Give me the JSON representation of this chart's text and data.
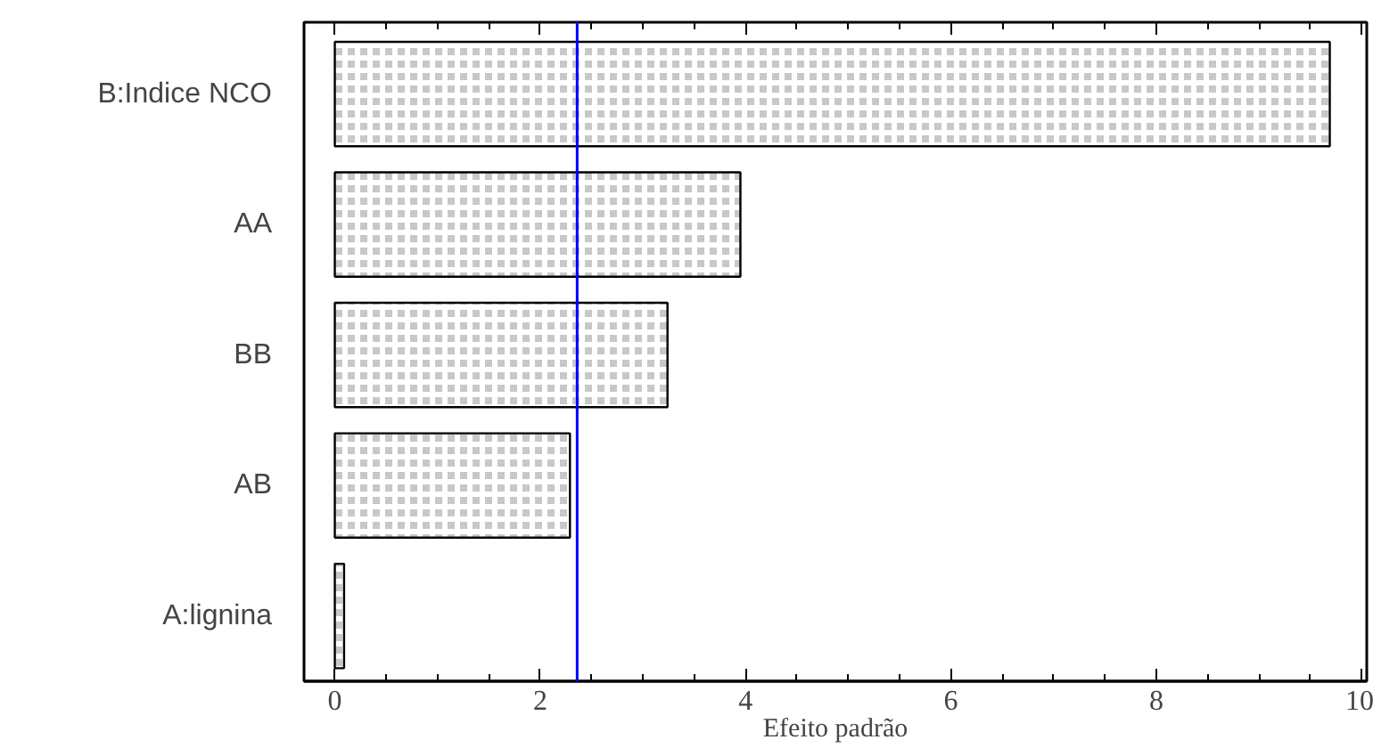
{
  "chart_data": {
    "type": "bar",
    "orientation": "horizontal",
    "xlabel": "Efeito padrão",
    "categories": [
      "B:Indice NCO",
      "AA",
      "BB",
      "AB",
      "A:lignina"
    ],
    "values": [
      9.69,
      3.95,
      3.24,
      2.29,
      0.09
    ],
    "color": "#c8c8c8",
    "xlim": [
      -0.3,
      10.05
    ],
    "xticks": [
      0,
      2,
      4,
      6,
      8,
      10
    ],
    "ref_lines": [
      {
        "axis": "x",
        "value": 2.36,
        "color": "#0000ff"
      }
    ],
    "grid": false
  }
}
